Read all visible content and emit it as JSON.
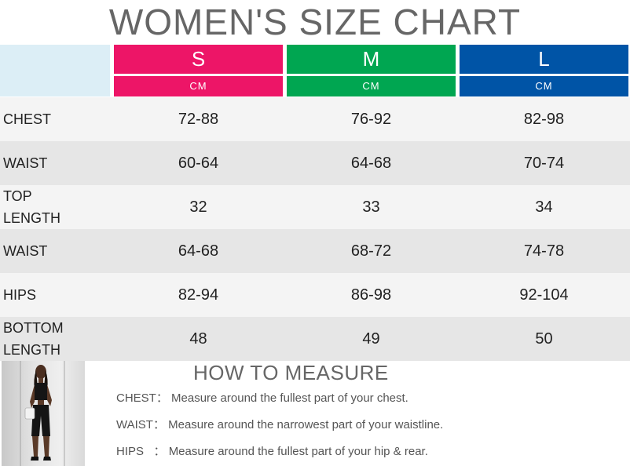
{
  "title": "WOMEN'S SIZE CHART",
  "sizes": [
    {
      "label": "S",
      "unit": "CM",
      "color": "#ed1567"
    },
    {
      "label": "M",
      "unit": "CM",
      "color": "#00a651"
    },
    {
      "label": "L",
      "unit": "CM",
      "color": "#0054a6"
    }
  ],
  "rows": [
    {
      "label": "CHEST",
      "values": [
        "72-88",
        "76-92",
        "82-98"
      ]
    },
    {
      "label": "WAIST",
      "values": [
        "60-64",
        "64-68",
        "70-74"
      ]
    },
    {
      "label": "TOP\nLENGTH",
      "values": [
        "32",
        "33",
        "34"
      ]
    },
    {
      "label": "WAIST",
      "values": [
        "64-68",
        "68-72",
        "74-78"
      ]
    },
    {
      "label": "HIPS",
      "values": [
        "82-94",
        "86-98",
        "92-104"
      ]
    },
    {
      "label": "BOTTOM\nLENGTH",
      "values": [
        "48",
        "49",
        "50"
      ]
    }
  ],
  "how_to_measure": {
    "title": "HOW TO MEASURE",
    "items": [
      {
        "term": "CHEST：",
        "text": "Measure around the fullest part of your chest."
      },
      {
        "term": "WAIST：",
        "text": "Measure around the narrowest part of your waistline."
      },
      {
        "term": "HIPS   ：",
        "text": "Measure around the fullest part of your hip & rear."
      }
    ]
  }
}
